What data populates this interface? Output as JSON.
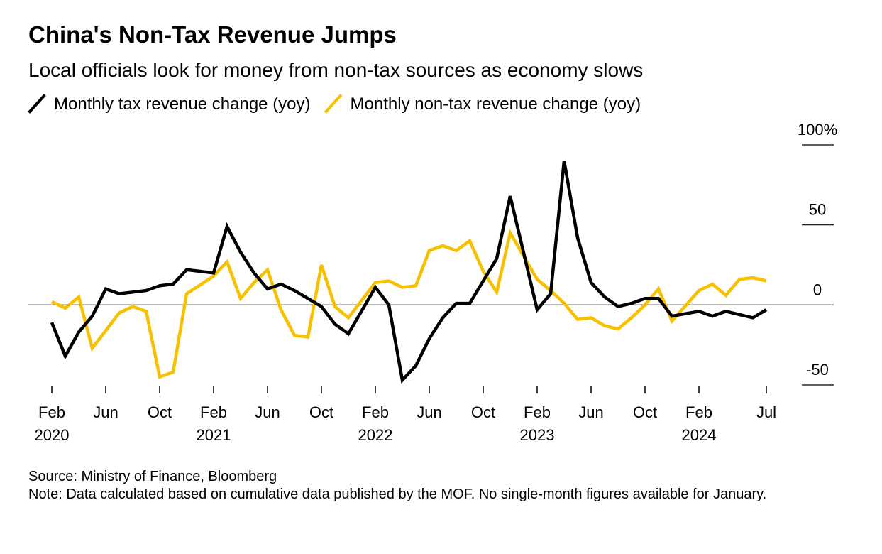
{
  "chart_data": {
    "type": "line",
    "title": "China's Non-Tax Revenue Jumps",
    "subtitle": "Local officials look for money from non-tax sources as economy slows",
    "source": "Source: Ministry of Finance, Bloomberg",
    "note": "Note: Data calculated based on cumulative data published by the MOF. No single-month figures available for January.",
    "x": [
      "2020-02",
      "2020-03",
      "2020-04",
      "2020-05",
      "2020-06",
      "2020-07",
      "2020-08",
      "2020-09",
      "2020-10",
      "2020-11",
      "2020-12",
      "2021-02",
      "2021-03",
      "2021-04",
      "2021-05",
      "2021-06",
      "2021-07",
      "2021-08",
      "2021-09",
      "2021-10",
      "2021-11",
      "2021-12",
      "2022-02",
      "2022-03",
      "2022-04",
      "2022-05",
      "2022-06",
      "2022-07",
      "2022-08",
      "2022-09",
      "2022-10",
      "2022-11",
      "2022-12",
      "2023-02",
      "2023-03",
      "2023-04",
      "2023-05",
      "2023-06",
      "2023-07",
      "2023-08",
      "2023-09",
      "2023-10",
      "2023-11",
      "2023-12",
      "2024-02",
      "2024-03",
      "2024-04",
      "2024-05",
      "2024-06",
      "2024-07"
    ],
    "series": [
      {
        "name": "Monthly tax revenue change (yoy)",
        "color": "#000000",
        "values": [
          -11,
          -32,
          -17,
          -7,
          10,
          7,
          8,
          9,
          12,
          13,
          22,
          20,
          49,
          33,
          20,
          10,
          13,
          9,
          4,
          -1,
          -12,
          -18,
          11,
          0,
          -47,
          -38,
          -21,
          -8,
          1,
          1,
          15,
          29,
          68,
          -3,
          7,
          90,
          42,
          14,
          5,
          -1,
          1,
          4,
          4,
          -7,
          -4,
          -7,
          -4,
          -6,
          -8,
          -3
        ]
      },
      {
        "name": "Monthly non-tax revenue change (yoy)",
        "color": "#f7c100",
        "values": [
          2,
          -2,
          5,
          -27,
          -16,
          -5,
          -1,
          -4,
          -45,
          -42,
          7,
          18,
          27,
          4,
          14,
          22,
          -3,
          -19,
          -20,
          25,
          -1,
          -8,
          14,
          15,
          11,
          12,
          34,
          37,
          34,
          40,
          21,
          8,
          45,
          16,
          9,
          1,
          -9,
          -8,
          -13,
          -15,
          -8,
          0,
          10,
          -10,
          9,
          13,
          6,
          16,
          17,
          15
        ]
      }
    ],
    "ylim": [
      -50,
      100
    ],
    "yticks": [
      {
        "value": 100,
        "label": "100%"
      },
      50,
      0,
      -50
    ],
    "xticks": [
      {
        "value": "2020-02",
        "label": "Feb",
        "year": "2020"
      },
      {
        "value": "2020-06",
        "label": "Jun"
      },
      {
        "value": "2020-10",
        "label": "Oct"
      },
      {
        "value": "2021-02",
        "label": "Feb",
        "year": "2021"
      },
      {
        "value": "2021-06",
        "label": "Jun"
      },
      {
        "value": "2021-10",
        "label": "Oct"
      },
      {
        "value": "2022-02",
        "label": "Feb",
        "year": "2022"
      },
      {
        "value": "2022-06",
        "label": "Jun"
      },
      {
        "value": "2022-10",
        "label": "Oct"
      },
      {
        "value": "2023-02",
        "label": "Feb",
        "year": "2023"
      },
      {
        "value": "2023-06",
        "label": "Jun"
      },
      {
        "value": "2023-10",
        "label": "Oct"
      },
      {
        "value": "2024-02",
        "label": "Feb",
        "year": "2024"
      },
      {
        "value": "2024-07",
        "label": "Jul"
      }
    ]
  }
}
